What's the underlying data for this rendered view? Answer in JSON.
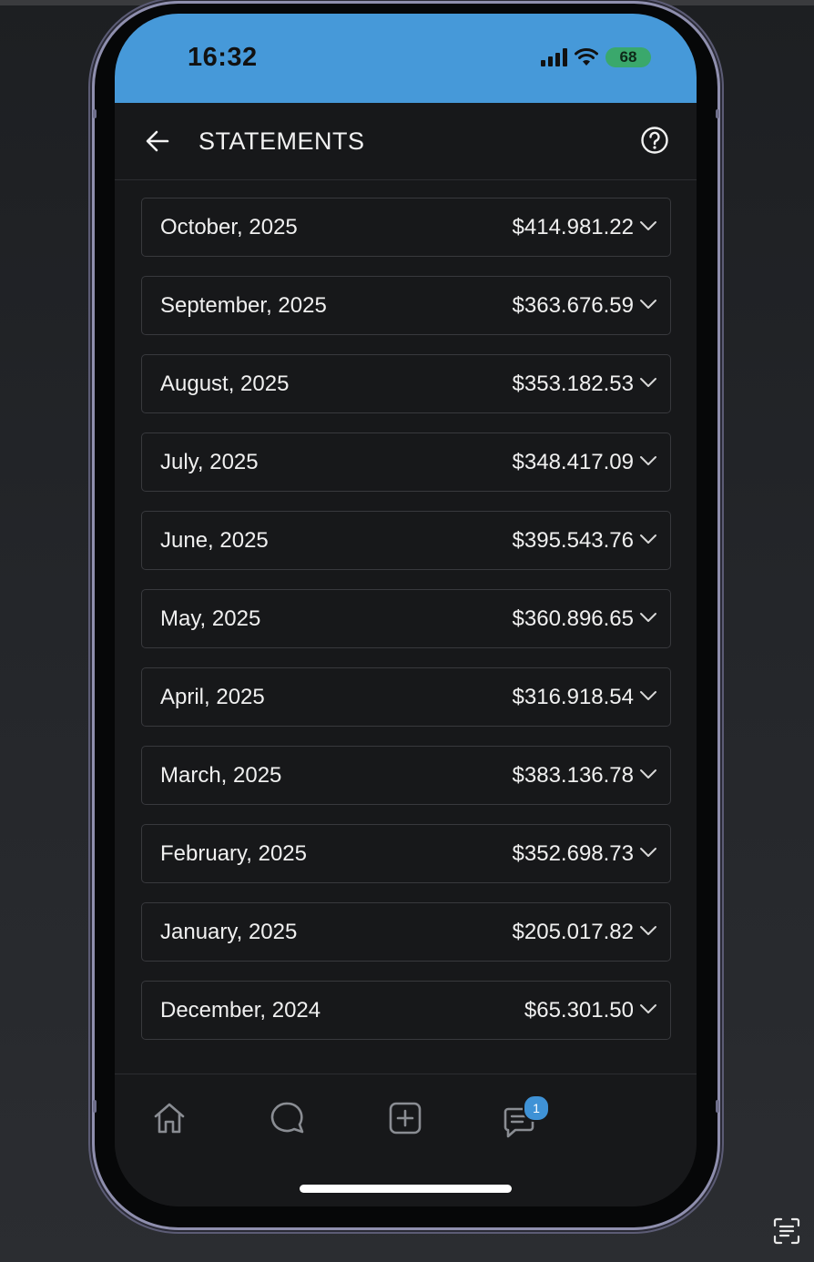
{
  "status_bar": {
    "time": "16:32",
    "battery_level": "68",
    "background_color": "#4699d9"
  },
  "header": {
    "title": "STATEMENTS",
    "back_icon": "arrow-left-icon",
    "help_icon": "question-circle-icon"
  },
  "statements": [
    {
      "month": "October, 2025",
      "amount": "$414.981.22"
    },
    {
      "month": "September, 2025",
      "amount": "$363.676.59"
    },
    {
      "month": "August, 2025",
      "amount": "$353.182.53"
    },
    {
      "month": "July, 2025",
      "amount": "$348.417.09"
    },
    {
      "month": "June, 2025",
      "amount": "$395.543.76"
    },
    {
      "month": "May, 2025",
      "amount": "$360.896.65"
    },
    {
      "month": "April, 2025",
      "amount": "$316.918.54"
    },
    {
      "month": "March, 2025",
      "amount": "$383.136.78"
    },
    {
      "month": "February, 2025",
      "amount": "$352.698.73"
    },
    {
      "month": "January, 2025",
      "amount": "$205.017.82"
    },
    {
      "month": "December, 2024",
      "amount": "$65.301.50"
    }
  ],
  "tabbar": {
    "tabs": [
      {
        "icon": "home-icon"
      },
      {
        "icon": "chat-bubble-icon"
      },
      {
        "icon": "plus-square-icon"
      },
      {
        "icon": "messages-icon"
      }
    ],
    "messages_badge": "1",
    "badge_color": "#3f92d6"
  }
}
